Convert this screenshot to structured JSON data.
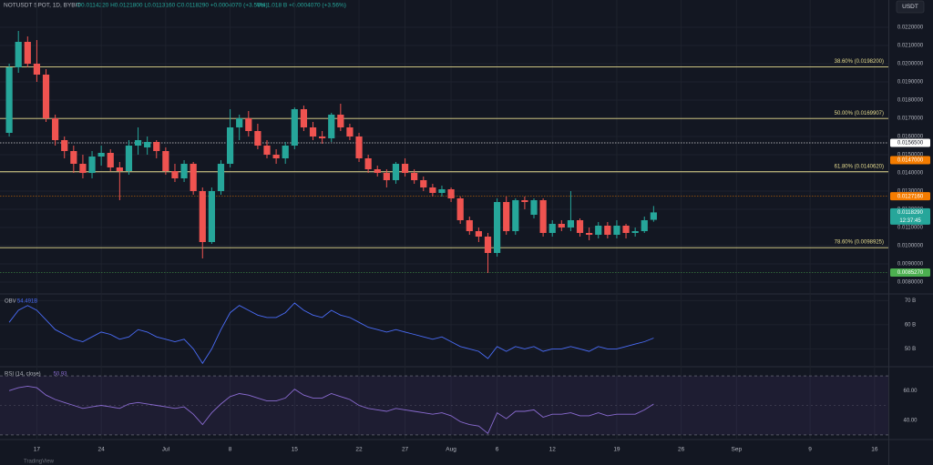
{
  "header": {
    "symbol": "NOTUSDT SPOT, 1D, BYBIT",
    "ohlc_text": "O0.0114220 H0.0121800 L0.0113160 C0.0118290 +0.0004070 (+3.56%)",
    "volume_text": "Vol 1.018 B +0.0004070 (+3.56%)",
    "currency": "USDT",
    "watermark": "TradingView"
  },
  "chart_data": [
    {
      "type": "candlestick",
      "up_color": "#26a69a",
      "down_color": "#ef5350",
      "grid": true,
      "xlim": [
        -4,
        92.5
      ],
      "xticks": [
        {
          "value": 0,
          "label": "17"
        },
        {
          "value": 7,
          "label": "24"
        },
        {
          "value": 14,
          "label": "Jul"
        },
        {
          "value": 21,
          "label": "8"
        },
        {
          "value": 28,
          "label": "15"
        },
        {
          "value": 35,
          "label": "22"
        },
        {
          "value": 40,
          "label": "27"
        },
        {
          "value": 45,
          "label": "Aug"
        },
        {
          "value": 50,
          "label": "6"
        },
        {
          "value": 56,
          "label": "12"
        },
        {
          "value": 63,
          "label": "19"
        },
        {
          "value": 70,
          "label": "26"
        },
        {
          "value": 76,
          "label": "Sep"
        },
        {
          "value": 84,
          "label": "9"
        },
        {
          "value": 91,
          "label": "16"
        }
      ],
      "ylim": [
        0.0074,
        0.0235
      ],
      "yticks": [
        {
          "value": 0.008,
          "label": "0.0080000"
        },
        {
          "value": 0.009,
          "label": "0.0090000"
        },
        {
          "value": 0.01,
          "label": "0.0100000"
        },
        {
          "value": 0.011,
          "label": "0.0110000"
        },
        {
          "value": 0.012,
          "label": "0.0120000"
        },
        {
          "value": 0.013,
          "label": "0.0130000"
        },
        {
          "value": 0.014,
          "label": "0.0140000"
        },
        {
          "value": 0.015,
          "label": "0.0150000"
        },
        {
          "value": 0.016,
          "label": "0.0160000"
        },
        {
          "value": 0.017,
          "label": "0.0170000"
        },
        {
          "value": 0.018,
          "label": "0.0180000"
        },
        {
          "value": 0.019,
          "label": "0.0190000"
        },
        {
          "value": 0.02,
          "label": "0.0200000"
        },
        {
          "value": 0.021,
          "label": "0.0210000"
        },
        {
          "value": 0.022,
          "label": "0.0220000"
        }
      ],
      "x": [
        -3,
        -2,
        -1,
        0,
        1,
        2,
        3,
        4,
        5,
        6,
        7,
        8,
        9,
        10,
        11,
        12,
        13,
        14,
        15,
        16,
        17,
        18,
        19,
        20,
        21,
        22,
        23,
        24,
        25,
        26,
        27,
        28,
        29,
        30,
        31,
        32,
        33,
        34,
        35,
        36,
        37,
        38,
        39,
        40,
        41,
        42,
        43,
        44,
        45,
        46,
        47,
        48,
        49,
        50,
        51,
        52,
        53,
        54,
        55,
        56,
        57,
        58,
        59,
        60,
        61,
        62,
        63,
        64,
        65,
        66,
        67
      ],
      "ohlc": [
        [
          0.0162,
          0.02,
          0.016,
          0.0198
        ],
        [
          0.0198,
          0.0218,
          0.0195,
          0.0212
        ],
        [
          0.0212,
          0.0215,
          0.0198,
          0.02
        ],
        [
          0.02,
          0.0213,
          0.019,
          0.0194
        ],
        [
          0.0194,
          0.0197,
          0.0168,
          0.017
        ],
        [
          0.017,
          0.0172,
          0.0155,
          0.0158
        ],
        [
          0.0158,
          0.016,
          0.0148,
          0.0152
        ],
        [
          0.0152,
          0.0155,
          0.014,
          0.0145
        ],
        [
          0.0145,
          0.015,
          0.0137,
          0.014
        ],
        [
          0.014,
          0.0152,
          0.0137,
          0.0149
        ],
        [
          0.0149,
          0.0155,
          0.0144,
          0.0151
        ],
        [
          0.0151,
          0.0153,
          0.0141,
          0.0143
        ],
        [
          0.0143,
          0.0146,
          0.0125,
          0.0141
        ],
        [
          0.0141,
          0.0158,
          0.0139,
          0.0155
        ],
        [
          0.0155,
          0.0165,
          0.015,
          0.0158
        ],
        [
          0.0154,
          0.016,
          0.015,
          0.0157
        ],
        [
          0.0157,
          0.0158,
          0.0148,
          0.0152
        ],
        [
          0.0152,
          0.0154,
          0.0139,
          0.0141
        ],
        [
          0.0141,
          0.0145,
          0.0135,
          0.0137
        ],
        [
          0.0137,
          0.0147,
          0.0135,
          0.0145
        ],
        [
          0.0145,
          0.0146,
          0.0128,
          0.013
        ],
        [
          0.013,
          0.0132,
          0.0093,
          0.0102
        ],
        [
          0.0102,
          0.0132,
          0.0101,
          0.013
        ],
        [
          0.013,
          0.0147,
          0.0128,
          0.0145
        ],
        [
          0.0145,
          0.0175,
          0.0143,
          0.0165
        ],
        [
          0.0165,
          0.0172,
          0.0158,
          0.017
        ],
        [
          0.017,
          0.0174,
          0.016,
          0.0163
        ],
        [
          0.0163,
          0.0167,
          0.0153,
          0.0155
        ],
        [
          0.0155,
          0.0158,
          0.0148,
          0.015
        ],
        [
          0.015,
          0.0153,
          0.0145,
          0.0148
        ],
        [
          0.0148,
          0.0157,
          0.0145,
          0.0155
        ],
        [
          0.0155,
          0.0176,
          0.0153,
          0.0175
        ],
        [
          0.0175,
          0.0177,
          0.0163,
          0.0165
        ],
        [
          0.0165,
          0.0168,
          0.0158,
          0.016
        ],
        [
          0.016,
          0.0163,
          0.0156,
          0.0159
        ],
        [
          0.0159,
          0.0173,
          0.0157,
          0.0172
        ],
        [
          0.0172,
          0.0178,
          0.0163,
          0.0165
        ],
        [
          0.0165,
          0.0167,
          0.0158,
          0.016
        ],
        [
          0.016,
          0.0162,
          0.0146,
          0.0148
        ],
        [
          0.0148,
          0.015,
          0.014,
          0.0142
        ],
        [
          0.0142,
          0.0144,
          0.0138,
          0.014
        ],
        [
          0.014,
          0.0142,
          0.0132,
          0.0136
        ],
        [
          0.0136,
          0.0146,
          0.0134,
          0.0145
        ],
        [
          0.0145,
          0.0148,
          0.0138,
          0.014
        ],
        [
          0.014,
          0.0142,
          0.0134,
          0.0136
        ],
        [
          0.0136,
          0.0138,
          0.013,
          0.0132
        ],
        [
          0.0132,
          0.0134,
          0.0127,
          0.0129
        ],
        [
          0.0129,
          0.0133,
          0.0127,
          0.0131
        ],
        [
          0.0131,
          0.0132,
          0.0124,
          0.0126
        ],
        [
          0.0126,
          0.0127,
          0.0112,
          0.0114
        ],
        [
          0.0114,
          0.0116,
          0.0106,
          0.0108
        ],
        [
          0.0108,
          0.011,
          0.0102,
          0.0105
        ],
        [
          0.0105,
          0.0107,
          0.0085,
          0.0096
        ],
        [
          0.0096,
          0.0126,
          0.0094,
          0.0124
        ],
        [
          0.0124,
          0.0127,
          0.0106,
          0.0108
        ],
        [
          0.0108,
          0.0126,
          0.0106,
          0.0125
        ],
        [
          0.0125,
          0.0127,
          0.012,
          0.0124
        ],
        [
          0.0117,
          0.0126,
          0.0115,
          0.0125
        ],
        [
          0.0125,
          0.0126,
          0.0105,
          0.0107
        ],
        [
          0.0107,
          0.0114,
          0.0105,
          0.0112
        ],
        [
          0.0112,
          0.0114,
          0.0108,
          0.011
        ],
        [
          0.011,
          0.013,
          0.0108,
          0.0114
        ],
        [
          0.0114,
          0.0115,
          0.0105,
          0.0107
        ],
        [
          0.0107,
          0.011,
          0.0103,
          0.0106
        ],
        [
          0.0106,
          0.0113,
          0.0104,
          0.0111
        ],
        [
          0.0111,
          0.0113,
          0.0104,
          0.0106
        ],
        [
          0.0106,
          0.0114,
          0.0104,
          0.0111
        ],
        [
          0.0111,
          0.0112,
          0.0104,
          0.0107
        ],
        [
          0.0107,
          0.011,
          0.0105,
          0.0108
        ],
        [
          0.0108,
          0.0116,
          0.0107,
          0.0114
        ],
        [
          0.011422,
          0.01218,
          0.011316,
          0.011829
        ]
      ],
      "levels_color": "#e6dc8f",
      "levels": [
        {
          "value": 0.01982,
          "label": "38.60% (0.0198200)"
        },
        {
          "value": 0.0169907,
          "label": "50.00% (0.0169907)"
        },
        {
          "value": 0.014062,
          "label": "61.80% (0.0140620)"
        },
        {
          "value": 0.0098925,
          "label": "78.60% (0.0098925)"
        }
      ],
      "price_tags": [
        {
          "value": 0.01565,
          "label": "0.0156500",
          "color": "#ffffff",
          "line": true
        },
        {
          "value": 0.0147,
          "label": "0.0147000",
          "color": "#f57c00",
          "line": false
        },
        {
          "value": 0.012716,
          "label": "0.0127160",
          "color": "#f57c00",
          "line": true
        },
        {
          "value": 0.011829,
          "label": "0.0118290",
          "sublabel": "12:37:45",
          "color": "#26a69a",
          "line": false
        },
        {
          "value": 0.008527,
          "label": "0.0085270",
          "color": "#4caf50",
          "line": true
        }
      ]
    },
    {
      "type": "line",
      "title": "OBV",
      "last_value_label": "54.491B",
      "grid": true,
      "ylim": [
        43,
        72.4
      ],
      "yticks": [
        {
          "value": 50,
          "label": "50 B"
        },
        {
          "value": 60,
          "label": "60 B"
        },
        {
          "value": 70,
          "label": "70 B"
        }
      ],
      "series": [
        {
          "name": "OBV",
          "color": "#4a6cf7",
          "values": [
            61,
            66,
            68,
            66,
            62,
            58,
            56,
            54,
            53,
            55,
            57,
            56,
            54,
            55,
            58,
            57,
            55,
            54,
            53,
            54,
            50,
            44,
            50,
            58,
            65,
            68,
            66,
            64,
            63,
            63,
            65,
            69,
            66,
            64,
            63,
            66,
            64,
            63,
            61,
            59,
            58,
            57,
            58,
            57,
            56,
            55,
            54,
            55,
            53,
            51,
            50,
            49,
            46,
            51,
            49,
            51,
            50,
            51,
            49,
            50,
            50,
            51,
            50,
            49,
            51,
            50,
            50,
            51,
            52,
            53,
            54.491
          ]
        }
      ]
    },
    {
      "type": "line",
      "title": "RSI (14, close)",
      "last_value_label": "50.93",
      "grid": true,
      "ylim": [
        27.5,
        75.6
      ],
      "yticks": [
        {
          "value": 40,
          "label": "40.00"
        },
        {
          "value": 60,
          "label": "60.00"
        }
      ],
      "band": [
        30,
        70
      ],
      "midline": 50,
      "series": [
        {
          "name": "RSI",
          "color": "#8a6bd1",
          "values": [
            60,
            62,
            63,
            62,
            57,
            54,
            52,
            50,
            48,
            49,
            50,
            49,
            48,
            51,
            52,
            51,
            50,
            49,
            48,
            49,
            44,
            37,
            45,
            51,
            56,
            58,
            57,
            55,
            53,
            53,
            55,
            61,
            57,
            55,
            55,
            58,
            56,
            54,
            50,
            48,
            47,
            46,
            48,
            47,
            46,
            45,
            44,
            45,
            43,
            39,
            37,
            36,
            31,
            45,
            41,
            46,
            46,
            47,
            42,
            44,
            44,
            45,
            43,
            43,
            45,
            43,
            44,
            44,
            44,
            47,
            50.93
          ]
        }
      ]
    }
  ]
}
